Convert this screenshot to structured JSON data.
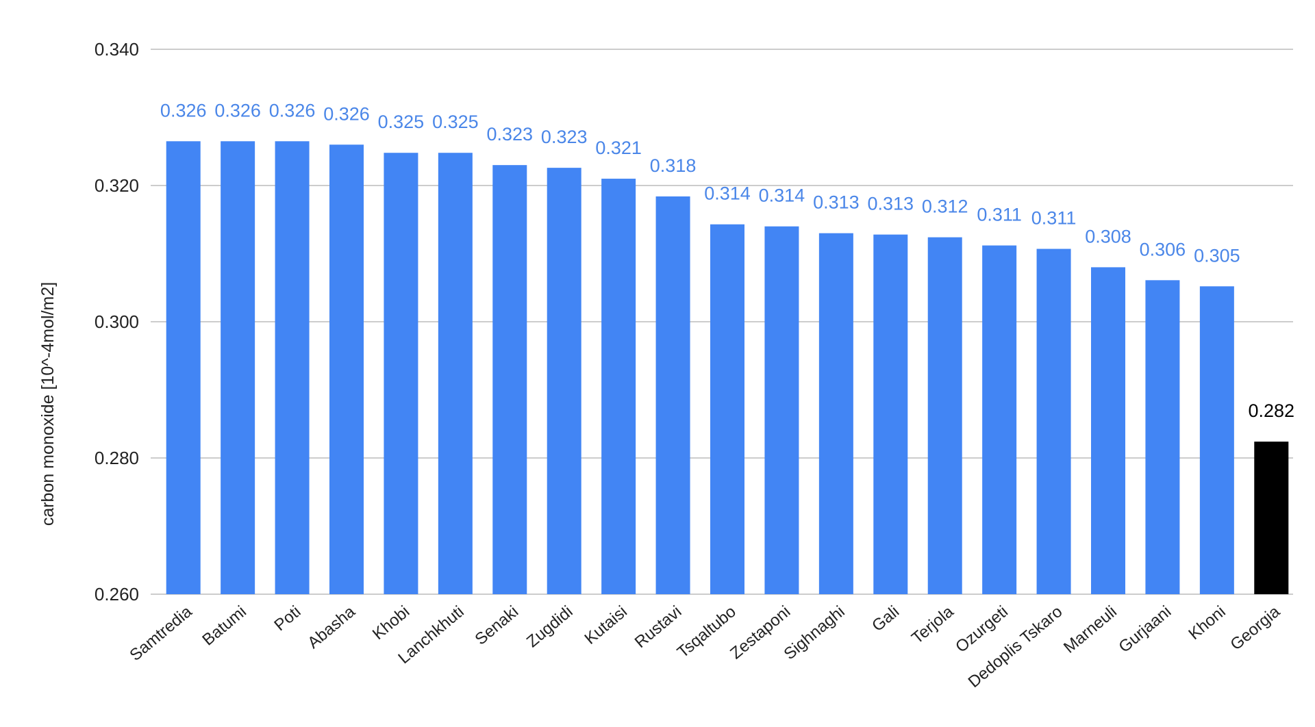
{
  "chart_data": {
    "type": "bar",
    "title": "",
    "xlabel": "",
    "ylabel": "carbon monoxide [10^-4mol/m2]",
    "ylim": [
      0.26,
      0.34
    ],
    "yticks": [
      "0.260",
      "0.280",
      "0.300",
      "0.320",
      "0.340"
    ],
    "grid": true,
    "categories": [
      "Samtredia",
      "Batumi",
      "Poti",
      "Abasha",
      "Khobi",
      "Lanchkhuti",
      "Senaki",
      "Zugdidi",
      "Kutaisi",
      "Rustavi",
      "Tsqaltubo",
      "Zestaponi",
      "Sighnaghi",
      "Gali",
      "Terjola",
      "Ozurgeti",
      "Dedoplis Tskaro",
      "Marneuli",
      "Gurjaani",
      "Khoni",
      "Georgia"
    ],
    "values": [
      0.3265,
      0.3265,
      0.3265,
      0.326,
      0.3248,
      0.3248,
      0.323,
      0.3226,
      0.321,
      0.3184,
      0.3143,
      0.314,
      0.313,
      0.3128,
      0.3124,
      0.3112,
      0.3107,
      0.308,
      0.3061,
      0.3052,
      0.2824
    ],
    "value_labels": [
      "0.326",
      "0.326",
      "0.326",
      "0.326",
      "0.325",
      "0.325",
      "0.323",
      "0.323",
      "0.321",
      "0.318",
      "0.314",
      "0.314",
      "0.313",
      "0.313",
      "0.312",
      "0.311",
      "0.311",
      "0.308",
      "0.306",
      "0.305",
      "0.282"
    ],
    "colors": {
      "bar": "#4285f4",
      "highlight_bar": "#000000",
      "value_label": "#4a86e8",
      "highlight_label": "#000000",
      "grid": "#cccccc",
      "axis_text": "#222222"
    },
    "highlight_index": 20
  }
}
